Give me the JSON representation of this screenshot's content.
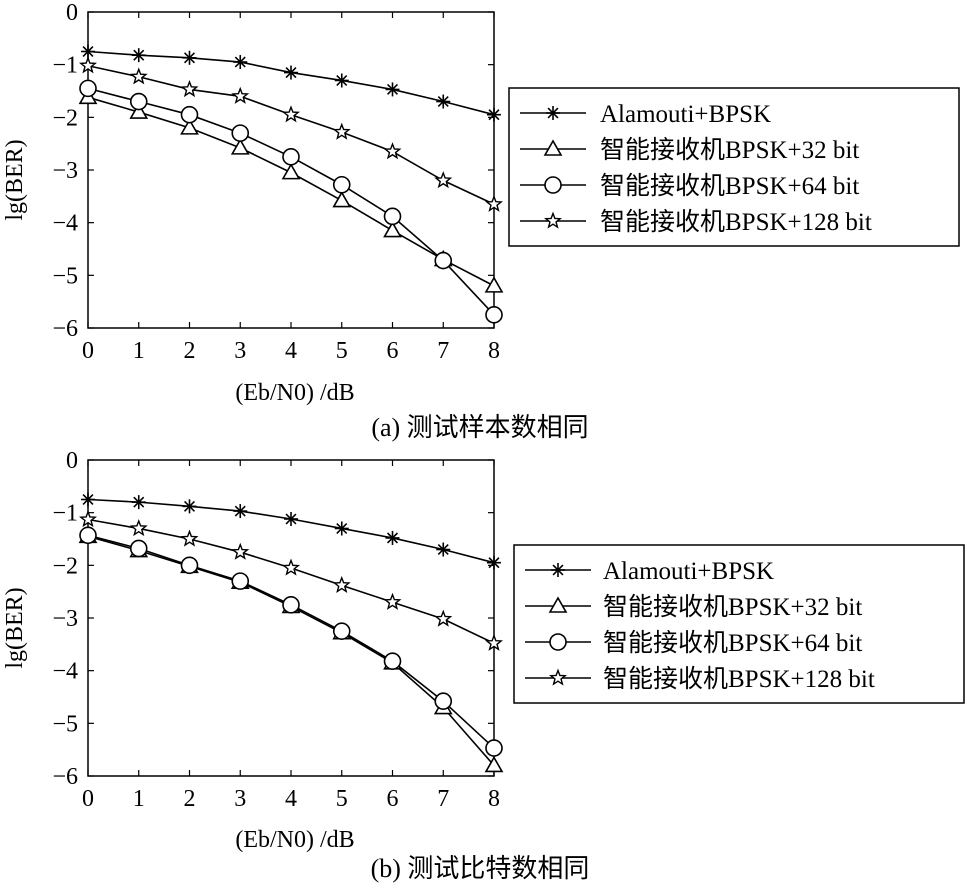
{
  "chart_data": [
    {
      "type": "line",
      "caption": "(a) 测试样本数相同",
      "xlabel": "(Eb/N0) /dB",
      "ylabel": "lg(BER)",
      "xlim": [
        0,
        8
      ],
      "ylim": [
        -6,
        0
      ],
      "x": [
        0,
        1,
        2,
        3,
        4,
        5,
        6,
        7,
        8
      ],
      "xticks": [
        "0",
        "1",
        "2",
        "3",
        "4",
        "5",
        "6",
        "7",
        "8"
      ],
      "yticks": [
        "0",
        "−1",
        "−2",
        "−3",
        "−4",
        "−5",
        "−6"
      ],
      "legend_position": "right",
      "series": [
        {
          "name": "Alamouti+BPSK",
          "marker": "asterisk",
          "values": [
            -0.75,
            -0.82,
            -0.87,
            -0.95,
            -1.15,
            -1.3,
            -1.47,
            -1.7,
            -1.95
          ]
        },
        {
          "name": "智能接收机BPSK+32 bit",
          "marker": "triangle",
          "values": [
            -1.62,
            -1.9,
            -2.2,
            -2.58,
            -3.05,
            -3.58,
            -4.15,
            -4.7,
            -5.2
          ]
        },
        {
          "name": "智能接收机BPSK+64 bit",
          "marker": "circle",
          "values": [
            -1.45,
            -1.7,
            -1.95,
            -2.3,
            -2.75,
            -3.28,
            -3.88,
            -4.72,
            -5.75
          ]
        },
        {
          "name": "智能接收机BPSK+128 bit",
          "marker": "star",
          "values": [
            -1.02,
            -1.23,
            -1.47,
            -1.6,
            -1.95,
            -2.28,
            -2.65,
            -3.2,
            -3.65
          ]
        }
      ]
    },
    {
      "type": "line",
      "caption": "(b) 测试比特数相同",
      "xlabel": "(Eb/N0) /dB",
      "ylabel": "lg(BER)",
      "xlim": [
        0,
        8
      ],
      "ylim": [
        -6,
        0
      ],
      "x": [
        0,
        1,
        2,
        3,
        4,
        5,
        6,
        7,
        8
      ],
      "xticks": [
        "0",
        "1",
        "2",
        "3",
        "4",
        "5",
        "6",
        "7",
        "8"
      ],
      "yticks": [
        "0",
        "−1",
        "−2",
        "−3",
        "−4",
        "−5",
        "−6"
      ],
      "legend_position": "right",
      "series": [
        {
          "name": "Alamouti+BPSK",
          "marker": "asterisk",
          "values": [
            -0.75,
            -0.8,
            -0.88,
            -0.97,
            -1.12,
            -1.3,
            -1.48,
            -1.7,
            -1.95
          ]
        },
        {
          "name": "智能接收机BPSK+32 bit",
          "marker": "triangle",
          "values": [
            -1.45,
            -1.72,
            -2.02,
            -2.32,
            -2.78,
            -3.28,
            -3.85,
            -4.7,
            -5.8
          ]
        },
        {
          "name": "智能接收机BPSK+64 bit",
          "marker": "circle",
          "values": [
            -1.43,
            -1.68,
            -2.0,
            -2.3,
            -2.75,
            -3.25,
            -3.82,
            -4.58,
            -5.47
          ]
        },
        {
          "name": "智能接收机BPSK+128 bit",
          "marker": "star",
          "values": [
            -1.13,
            -1.3,
            -1.5,
            -1.75,
            -2.05,
            -2.38,
            -2.7,
            -3.02,
            -3.48
          ]
        }
      ]
    }
  ]
}
